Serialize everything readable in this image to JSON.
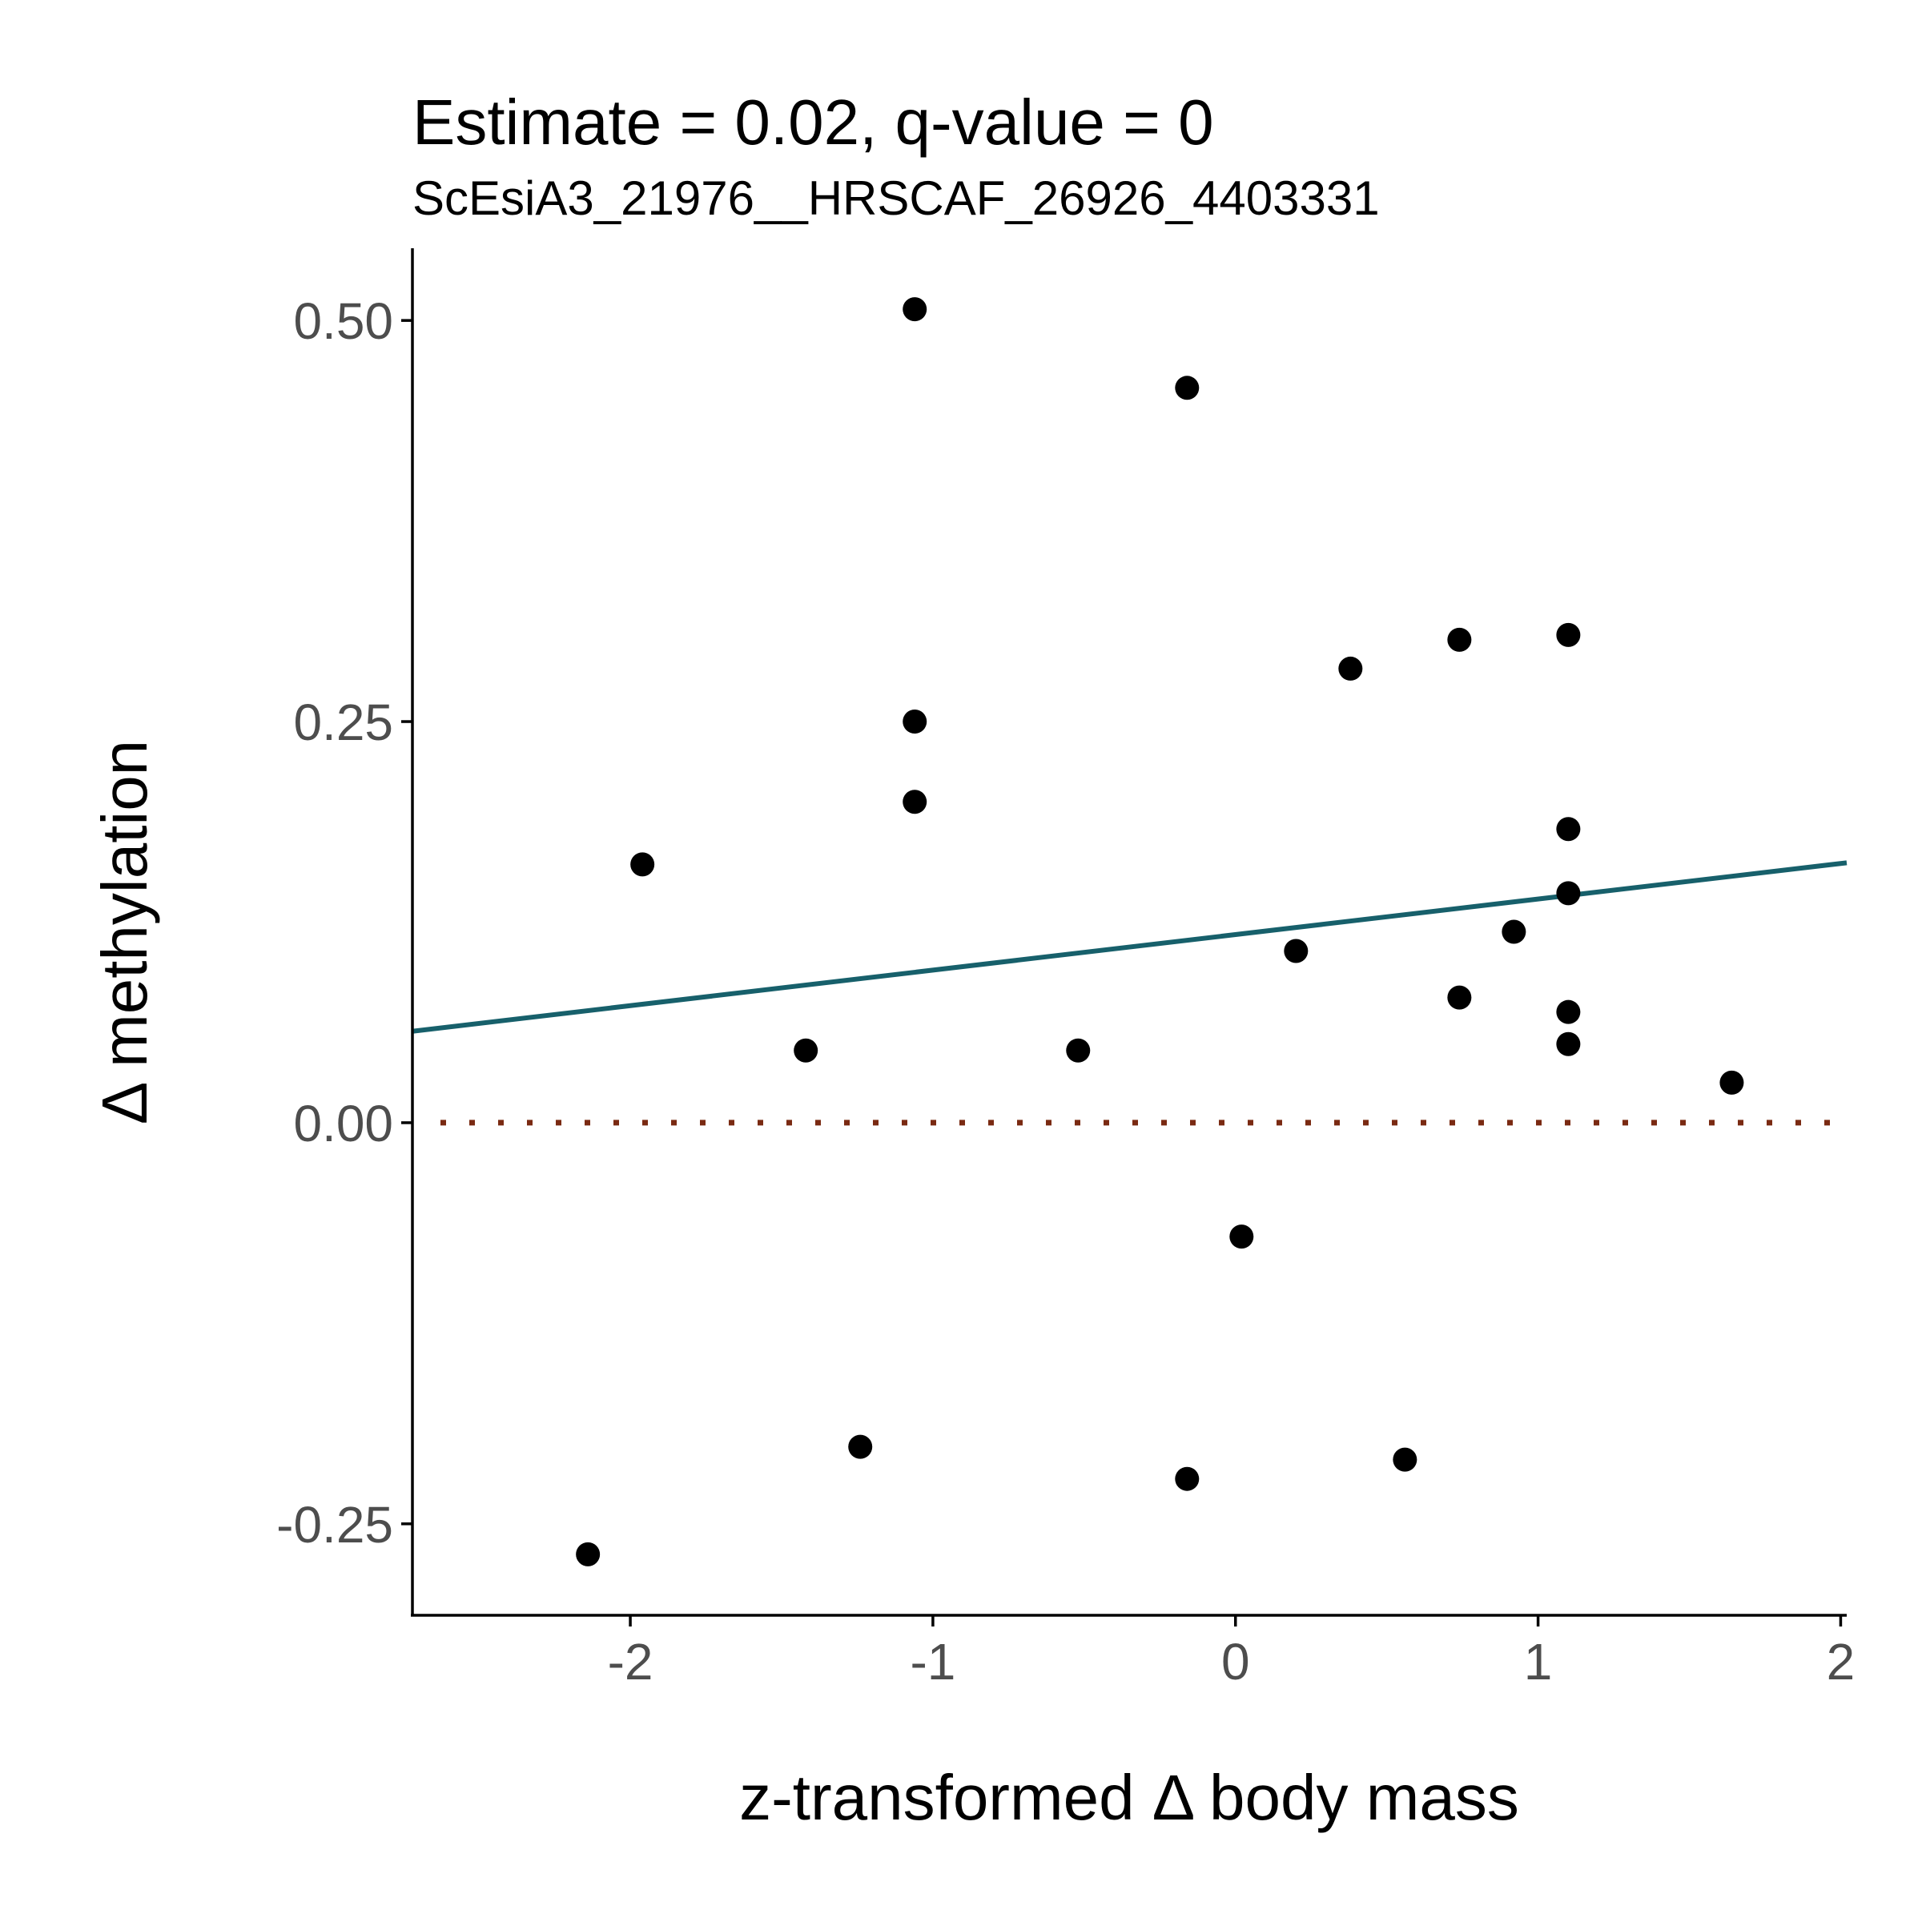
{
  "chart_data": {
    "type": "scatter",
    "title": "Estimate = 0.02, q-value = 0",
    "subtitle": "ScEsiA3_21976__HRSCAF_26926_4403331",
    "xlabel": "z-transformed Δ body mass",
    "ylabel": "Δ methylation",
    "xlim": [
      -2.72,
      2.02
    ],
    "ylim": [
      -0.307,
      0.545
    ],
    "x_ticks": [
      -2,
      -1,
      0,
      1,
      2
    ],
    "x_tick_labels": [
      "-2",
      "-1",
      "0",
      "1",
      "2"
    ],
    "y_ticks": [
      -0.25,
      0.0,
      0.25,
      0.5
    ],
    "y_tick_labels": [
      "-0.25",
      "0.00",
      "0.25",
      "0.50"
    ],
    "grid": false,
    "legend": "none",
    "points": [
      {
        "x": -1.06,
        "y": 0.507
      },
      {
        "x": -0.16,
        "y": 0.458
      },
      {
        "x": 0.74,
        "y": 0.301
      },
      {
        "x": 1.1,
        "y": 0.304
      },
      {
        "x": 0.38,
        "y": 0.283
      },
      {
        "x": -1.06,
        "y": 0.25
      },
      {
        "x": -1.06,
        "y": 0.2
      },
      {
        "x": 1.1,
        "y": 0.183
      },
      {
        "x": -1.96,
        "y": 0.161
      },
      {
        "x": 1.1,
        "y": 0.143
      },
      {
        "x": 0.92,
        "y": 0.119
      },
      {
        "x": 0.2,
        "y": 0.107
      },
      {
        "x": 0.74,
        "y": 0.078
      },
      {
        "x": 1.1,
        "y": 0.069
      },
      {
        "x": -1.42,
        "y": 0.045
      },
      {
        "x": -0.52,
        "y": 0.045
      },
      {
        "x": 1.1,
        "y": 0.049
      },
      {
        "x": 1.64,
        "y": 0.025
      },
      {
        "x": 0.02,
        "y": -0.071
      },
      {
        "x": -1.24,
        "y": -0.202
      },
      {
        "x": 0.56,
        "y": -0.21
      },
      {
        "x": -0.16,
        "y": -0.222
      },
      {
        "x": -2.14,
        "y": -0.269
      }
    ],
    "trend_line": {
      "x": [
        -2.72,
        2.02
      ],
      "y": [
        0.057,
        0.162
      ],
      "color": "#17606b"
    },
    "reference_line": {
      "y": 0.0,
      "style": "dotted",
      "color": "#7a2a12"
    },
    "point_color": "#000000"
  }
}
